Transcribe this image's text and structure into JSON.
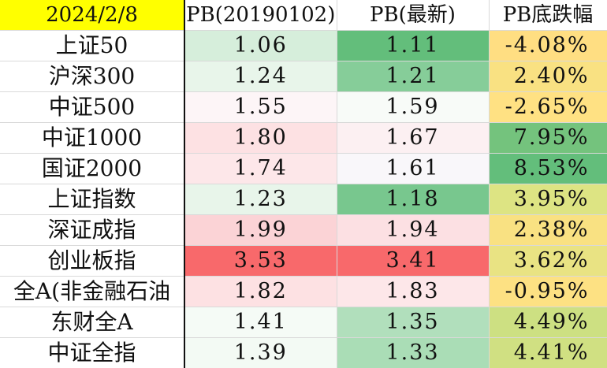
{
  "header": {
    "date": "2024/2/8",
    "col_pb_base": "PB(20190102)",
    "col_pb_latest": "PB(最新)",
    "col_drop": "PB底跌幅"
  },
  "rows": [
    {
      "name": "上证50",
      "pb_base": "1.06",
      "pb_latest": "1.11",
      "drop": "-4.08%",
      "bg_base": "#d6eedb",
      "bg_latest": "#63be7b",
      "bg_drop": "#ffde82"
    },
    {
      "name": "沪深300",
      "pb_base": "1.24",
      "pb_latest": "1.21",
      "drop": "2.40%",
      "bg_base": "#e8f5ea",
      "bg_latest": "#86cd99",
      "bg_drop": "#f9e182"
    },
    {
      "name": "中证500",
      "pb_base": "1.55",
      "pb_latest": "1.59",
      "drop": "-2.65%",
      "bg_base": "#fdf5f7",
      "bg_latest": "#f8fbf8",
      "bg_drop": "#ffe183"
    },
    {
      "name": "中证1000",
      "pb_base": "1.80",
      "pb_latest": "1.67",
      "drop": "7.95%",
      "bg_base": "#fde1e3",
      "bg_latest": "#fcf0f2",
      "bg_drop": "#74c37d"
    },
    {
      "name": "国证2000",
      "pb_base": "1.74",
      "pb_latest": "1.61",
      "drop": "8.53%",
      "bg_base": "#fde7e9",
      "bg_latest": "#f9f7fa",
      "bg_drop": "#63be7b"
    },
    {
      "name": "上证指数",
      "pb_base": "1.23",
      "pb_latest": "1.18",
      "drop": "3.95%",
      "bg_base": "#e8f5ea",
      "bg_latest": "#78c78e",
      "bg_drop": "#dde483"
    },
    {
      "name": "深证成指",
      "pb_base": "1.99",
      "pb_latest": "1.94",
      "drop": "2.38%",
      "bg_base": "#fbd3d6",
      "bg_latest": "#fce0e3",
      "bg_drop": "#f9e182"
    },
    {
      "name": "创业板指",
      "pb_base": "3.53",
      "pb_latest": "3.41",
      "drop": "3.62%",
      "bg_base": "#f8696b",
      "bg_latest": "#f8696b",
      "bg_drop": "#e9e383"
    },
    {
      "name": "全A(非金融石油",
      "pb_base": "1.82",
      "pb_latest": "1.83",
      "drop": "-0.95%",
      "bg_base": "#fde1e3",
      "bg_latest": "#fde7e9",
      "bg_drop": "#fde183"
    },
    {
      "name": "东财全A",
      "pb_base": "1.41",
      "pb_latest": "1.35",
      "drop": "4.49%",
      "bg_base": "#f5fbf6",
      "bg_latest": "#b1dfbc",
      "bg_drop": "#cde082"
    },
    {
      "name": "中证全指",
      "pb_base": "1.39",
      "pb_latest": "1.33",
      "drop": "4.41%",
      "bg_base": "#f3faf4",
      "bg_latest": "#aaddb6",
      "bg_drop": "#d0e082"
    }
  ]
}
